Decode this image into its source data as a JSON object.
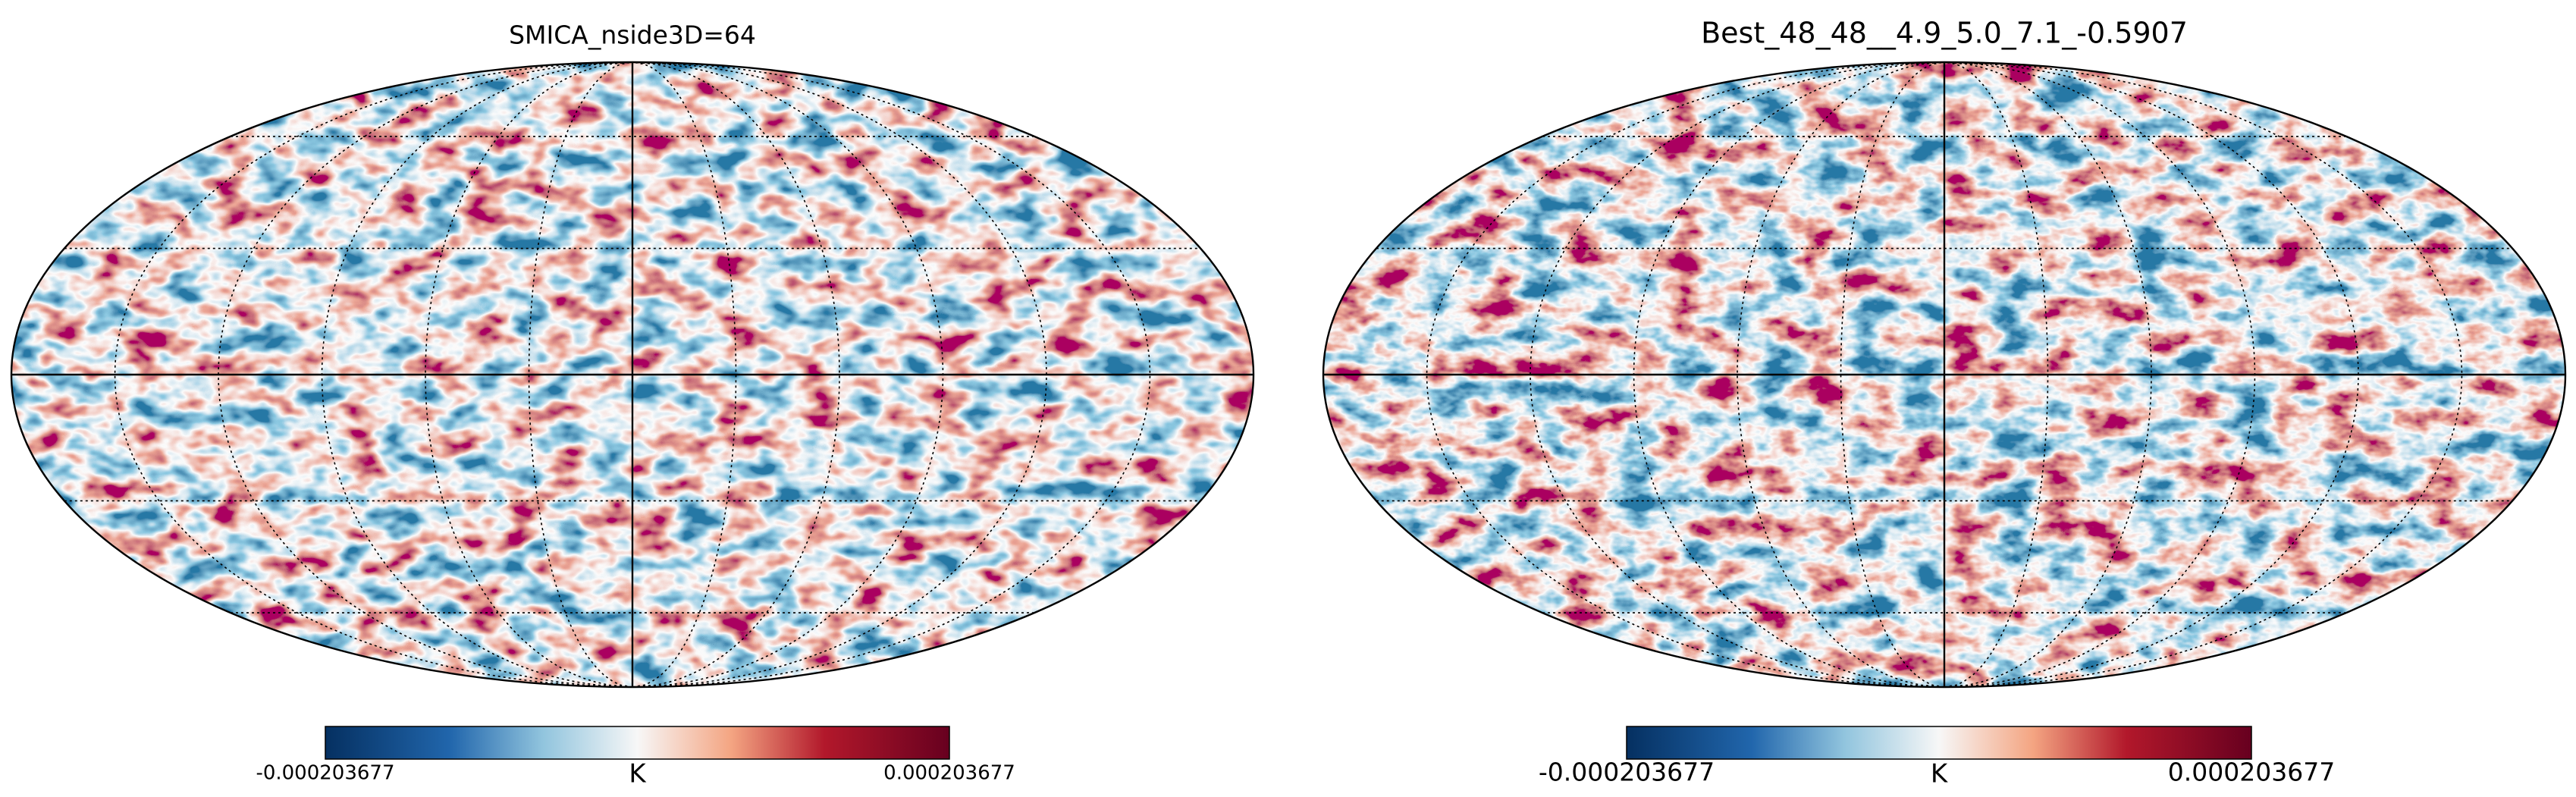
{
  "maps": [
    {
      "title": "SMICA_nside3D=64",
      "colorbar": {
        "min": -0.000203677,
        "max": 0.000203677,
        "unit": "K"
      }
    },
    {
      "title": "Best_48_48__4.9_5.0_7.1_-0.5907",
      "colorbar": {
        "min": -0.000203677,
        "max": 0.000203677,
        "unit": "K"
      }
    }
  ]
}
